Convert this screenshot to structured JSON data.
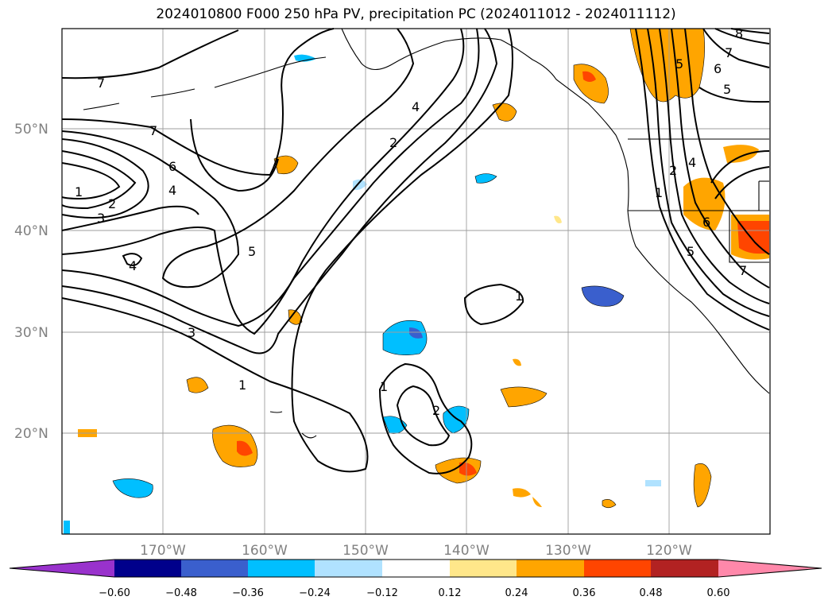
{
  "title": "2024010800 F000 250 hPa PV, precipitation PC (2024011012 - 2024011112)",
  "map": {
    "latitude_labels": [
      "50°N",
      "40°N",
      "30°N",
      "20°N"
    ],
    "longitude_labels": [
      "170°W",
      "160°W",
      "150°W",
      "140°W",
      "130°W",
      "120°W"
    ],
    "pv_contour_labels": [
      "7",
      "7",
      "6",
      "4",
      "1",
      "2",
      "3",
      "4",
      "5",
      "3",
      "1",
      "4",
      "2",
      "1",
      "2",
      "1",
      "8",
      "7",
      "6",
      "5",
      "5",
      "4",
      "2",
      "1",
      "6",
      "5",
      "7"
    ]
  },
  "colorbar": {
    "tick_labels": [
      "−0.60",
      "−0.48",
      "−0.36",
      "−0.24",
      "−0.12",
      "0.12",
      "0.24",
      "0.36",
      "0.48",
      "0.60"
    ],
    "colors": [
      "#9932cc",
      "#00008b",
      "#3a5fcd",
      "#00bfff",
      "#b0e2ff",
      "#ffffff",
      "#ffe78a",
      "#ffa500",
      "#ff4500",
      "#b22222",
      "#ff88aa"
    ]
  }
}
